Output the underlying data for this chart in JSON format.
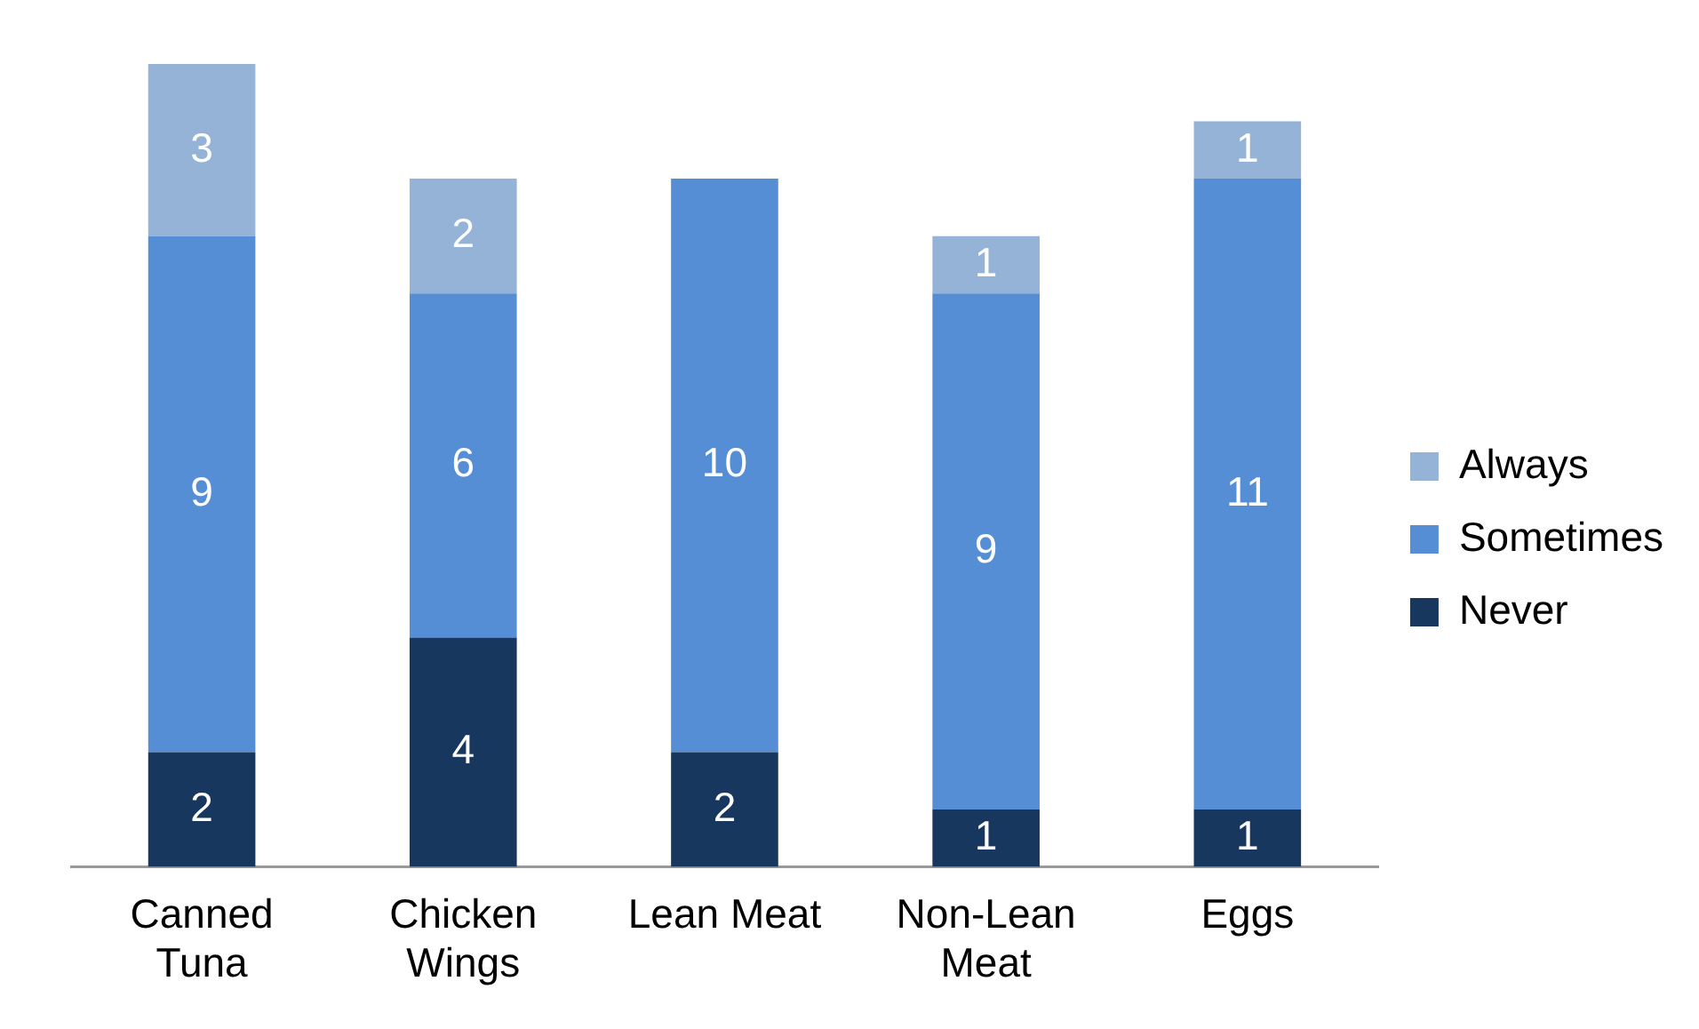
{
  "chart_data": {
    "type": "bar",
    "stacked": true,
    "categories": [
      "Canned Tuna",
      "Chicken Wings",
      "Lean Meat",
      "Non-Lean Meat",
      "Eggs"
    ],
    "series": [
      {
        "name": "Never",
        "color": "#17375e",
        "values": [
          2,
          4,
          2,
          1,
          1
        ]
      },
      {
        "name": "Sometimes",
        "color": "#558ed5",
        "values": [
          9,
          6,
          10,
          9,
          11
        ]
      },
      {
        "name": "Always",
        "color": "#95b3d7",
        "values": [
          3,
          2,
          null,
          1,
          1
        ]
      }
    ],
    "data_labels": true,
    "tick_labels": "x",
    "legend": "right",
    "grid": false
  }
}
